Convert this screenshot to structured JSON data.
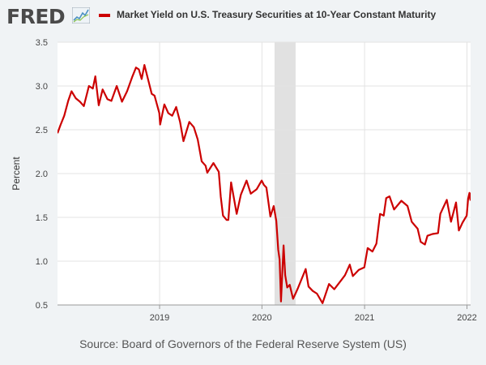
{
  "logo": {
    "text": "FRED",
    "icon": "chart-line-icon"
  },
  "chart_data": {
    "type": "line",
    "title": "Market Yield on U.S. Treasury Securities at 10-Year Constant Maturity",
    "ylabel": "Percent",
    "xlabel": "",
    "x_range": [
      "2018-01-02",
      "2022-01-14"
    ],
    "ylim": [
      0.5,
      3.5
    ],
    "yticks": [
      0.5,
      1.0,
      1.5,
      2.0,
      2.5,
      3.0,
      3.5
    ],
    "ytick_labels": [
      "0.5",
      "1.0",
      "1.5",
      "2.0",
      "2.5",
      "3.0",
      "3.5"
    ],
    "xticks": [
      {
        "date": "2019-01-01",
        "label": "2019"
      },
      {
        "date": "2020-01-01",
        "label": "2020"
      },
      {
        "date": "2021-01-01",
        "label": "2021"
      },
      {
        "date": "2022-01-01",
        "label": "2022"
      }
    ],
    "grid": true,
    "legend_position": "top",
    "recession": {
      "start": "2020-02-15",
      "end": "2020-04-30",
      "color": "#e1e1e1"
    },
    "series": [
      {
        "name": "Market Yield on U.S. Treasury Securities at 10-Year Constant Maturity",
        "color": "#cc0000",
        "points": [
          [
            "2018-01-02",
            2.46
          ],
          [
            "2018-01-12",
            2.55
          ],
          [
            "2018-01-26",
            2.66
          ],
          [
            "2018-02-09",
            2.83
          ],
          [
            "2018-02-21",
            2.94
          ],
          [
            "2018-03-08",
            2.86
          ],
          [
            "2018-03-23",
            2.82
          ],
          [
            "2018-04-06",
            2.77
          ],
          [
            "2018-04-24",
            3.0
          ],
          [
            "2018-05-08",
            2.97
          ],
          [
            "2018-05-17",
            3.11
          ],
          [
            "2018-05-29",
            2.78
          ],
          [
            "2018-06-12",
            2.96
          ],
          [
            "2018-06-29",
            2.85
          ],
          [
            "2018-07-13",
            2.83
          ],
          [
            "2018-08-01",
            3.0
          ],
          [
            "2018-08-20",
            2.82
          ],
          [
            "2018-09-07",
            2.94
          ],
          [
            "2018-09-25",
            3.1
          ],
          [
            "2018-10-09",
            3.21
          ],
          [
            "2018-10-19",
            3.19
          ],
          [
            "2018-10-29",
            3.08
          ],
          [
            "2018-11-08",
            3.24
          ],
          [
            "2018-11-23",
            3.05
          ],
          [
            "2018-12-04",
            2.91
          ],
          [
            "2018-12-14",
            2.89
          ],
          [
            "2018-12-31",
            2.69
          ],
          [
            "2019-01-03",
            2.56
          ],
          [
            "2019-01-18",
            2.79
          ],
          [
            "2019-02-01",
            2.69
          ],
          [
            "2019-02-15",
            2.66
          ],
          [
            "2019-03-01",
            2.76
          ],
          [
            "2019-03-15",
            2.59
          ],
          [
            "2019-03-27",
            2.37
          ],
          [
            "2019-04-17",
            2.59
          ],
          [
            "2019-05-03",
            2.53
          ],
          [
            "2019-05-17",
            2.39
          ],
          [
            "2019-05-31",
            2.14
          ],
          [
            "2019-06-14",
            2.09
          ],
          [
            "2019-06-20",
            2.01
          ],
          [
            "2019-07-12",
            2.12
          ],
          [
            "2019-07-31",
            2.02
          ],
          [
            "2019-08-07",
            1.74
          ],
          [
            "2019-08-15",
            1.52
          ],
          [
            "2019-08-28",
            1.47
          ],
          [
            "2019-09-03",
            1.47
          ],
          [
            "2019-09-13",
            1.9
          ],
          [
            "2019-10-03",
            1.54
          ],
          [
            "2019-10-18",
            1.76
          ],
          [
            "2019-11-07",
            1.92
          ],
          [
            "2019-11-22",
            1.77
          ],
          [
            "2019-12-13",
            1.82
          ],
          [
            "2019-12-31",
            1.92
          ],
          [
            "2020-01-08",
            1.87
          ],
          [
            "2020-01-17",
            1.84
          ],
          [
            "2020-01-31",
            1.51
          ],
          [
            "2020-02-12",
            1.63
          ],
          [
            "2020-02-21",
            1.46
          ],
          [
            "2020-02-28",
            1.13
          ],
          [
            "2020-03-04",
            1.02
          ],
          [
            "2020-03-09",
            0.54
          ],
          [
            "2020-03-18",
            1.18
          ],
          [
            "2020-03-24",
            0.84
          ],
          [
            "2020-03-31",
            0.7
          ],
          [
            "2020-04-09",
            0.73
          ],
          [
            "2020-04-21",
            0.57
          ],
          [
            "2020-05-01",
            0.64
          ],
          [
            "2020-05-08",
            0.69
          ],
          [
            "2020-06-05",
            0.91
          ],
          [
            "2020-06-15",
            0.71
          ],
          [
            "2020-06-30",
            0.66
          ],
          [
            "2020-07-15",
            0.63
          ],
          [
            "2020-08-04",
            0.52
          ],
          [
            "2020-08-27",
            0.74
          ],
          [
            "2020-09-15",
            0.68
          ],
          [
            "2020-10-09",
            0.78
          ],
          [
            "2020-10-23",
            0.84
          ],
          [
            "2020-11-09",
            0.96
          ],
          [
            "2020-11-20",
            0.83
          ],
          [
            "2020-12-11",
            0.9
          ],
          [
            "2020-12-31",
            0.93
          ],
          [
            "2021-01-12",
            1.15
          ],
          [
            "2021-01-29",
            1.11
          ],
          [
            "2021-02-12",
            1.2
          ],
          [
            "2021-02-25",
            1.54
          ],
          [
            "2021-03-10",
            1.52
          ],
          [
            "2021-03-19",
            1.72
          ],
          [
            "2021-03-31",
            1.74
          ],
          [
            "2021-04-16",
            1.59
          ],
          [
            "2021-05-12",
            1.69
          ],
          [
            "2021-06-03",
            1.63
          ],
          [
            "2021-06-18",
            1.45
          ],
          [
            "2021-07-09",
            1.37
          ],
          [
            "2021-07-20",
            1.22
          ],
          [
            "2021-08-04",
            1.19
          ],
          [
            "2021-08-13",
            1.29
          ],
          [
            "2021-08-31",
            1.31
          ],
          [
            "2021-09-20",
            1.32
          ],
          [
            "2021-09-28",
            1.54
          ],
          [
            "2021-10-21",
            1.7
          ],
          [
            "2021-11-05",
            1.45
          ],
          [
            "2021-11-23",
            1.67
          ],
          [
            "2021-12-03",
            1.35
          ],
          [
            "2021-12-16",
            1.44
          ],
          [
            "2021-12-31",
            1.52
          ],
          [
            "2022-01-05",
            1.71
          ],
          [
            "2022-01-10",
            1.78
          ],
          [
            "2022-01-13",
            1.7
          ],
          [
            "2022-01-14",
            1.78
          ]
        ]
      }
    ]
  },
  "source": "Source: Board of Governors of the Federal Reserve System (US)"
}
